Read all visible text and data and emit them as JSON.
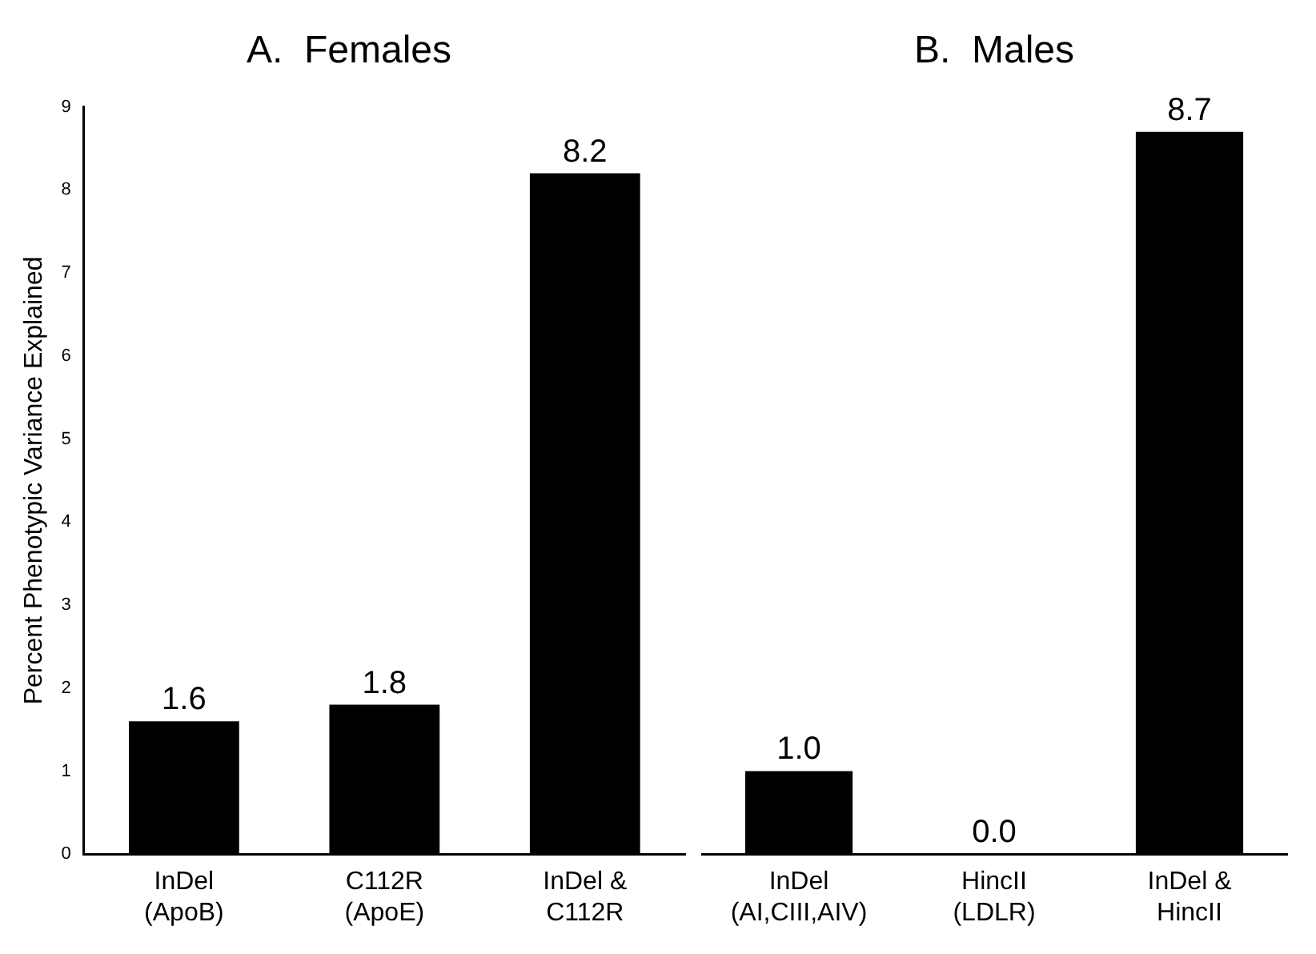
{
  "chart_data": [
    {
      "type": "bar",
      "title": "A.  Females",
      "ylabel": "Percent Phenotypic Variance Explained",
      "categories": [
        "InDel\n(ApoB)",
        "C112R\n(ApoE)",
        "InDel &\nC112R"
      ],
      "values": [
        1.6,
        1.8,
        8.2
      ],
      "value_labels": [
        "1.6",
        "1.8",
        "8.2"
      ],
      "color": "#000000",
      "ylim": [
        0,
        9
      ],
      "yticks": [
        0,
        1,
        2,
        3,
        4,
        5,
        6,
        7,
        8,
        9
      ],
      "grid": false,
      "legend": false
    },
    {
      "type": "bar",
      "title": "B.  Males",
      "categories": [
        "InDel\n(AI,CIII,AIV)",
        "HincII\n(LDLR)",
        "InDel &\nHincII"
      ],
      "values": [
        1.0,
        0.0,
        8.7
      ],
      "value_labels": [
        "1.0",
        "0.0",
        "8.7"
      ],
      "color": "#000000",
      "ylim": [
        0,
        9
      ],
      "tick_labels": "x",
      "grid": false,
      "legend": false
    }
  ]
}
